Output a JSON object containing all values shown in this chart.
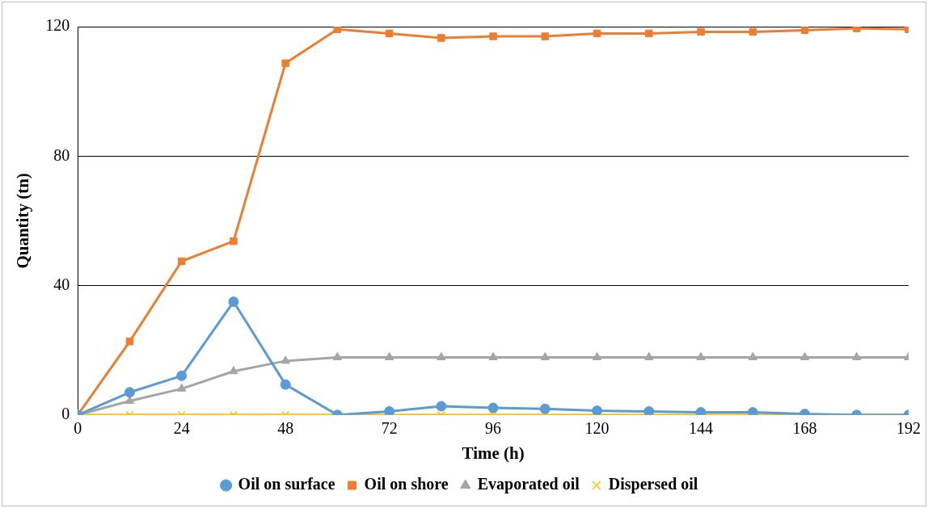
{
  "chart_data": {
    "type": "line",
    "xlabel": "Time (h)",
    "ylabel": "Quantity (tn)",
    "x": [
      0,
      12,
      24,
      36,
      48,
      60,
      72,
      84,
      96,
      108,
      120,
      132,
      144,
      156,
      168,
      180,
      192
    ],
    "xlim": [
      0,
      192
    ],
    "xticks": [
      0,
      24,
      48,
      72,
      96,
      120,
      144,
      168,
      192
    ],
    "ylim": [
      0,
      120
    ],
    "yticks": [
      0,
      40,
      80,
      120
    ],
    "grid": "y",
    "legend": "bottom",
    "line_style": "solid",
    "series": [
      {
        "name": "Oil on surface",
        "color": "#5b9bd5",
        "marker": "circle",
        "values": [
          0,
          7,
          12.1,
          35,
          9.4,
          0,
          1.1,
          2.7,
          2.2,
          1.9,
          1.3,
          1.1,
          0.8,
          0.8,
          0.3,
          0,
          0
        ]
      },
      {
        "name": "Oil on shore",
        "color": "#ed7d31",
        "marker": "square",
        "values": [
          0,
          22.7,
          47.5,
          53.7,
          108.7,
          119.2,
          117.9,
          116.5,
          117,
          117,
          117.9,
          117.9,
          118.4,
          118.4,
          118.9,
          119.5,
          119.2
        ]
      },
      {
        "name": "Evaporated oil",
        "color": "#a5a5a5",
        "marker": "triangle",
        "values": [
          0,
          4.3,
          8.1,
          13.5,
          16.7,
          17.8,
          17.8,
          17.8,
          17.8,
          17.8,
          17.8,
          17.8,
          17.8,
          17.8,
          17.8,
          17.8,
          17.8
        ]
      },
      {
        "name": "Dispersed oil",
        "color": "#ffc000",
        "marker": "cross",
        "values": [
          0,
          0,
          0,
          0,
          0,
          0,
          0,
          0,
          0,
          0,
          0,
          0,
          0,
          0,
          0,
          0,
          0
        ]
      }
    ]
  }
}
